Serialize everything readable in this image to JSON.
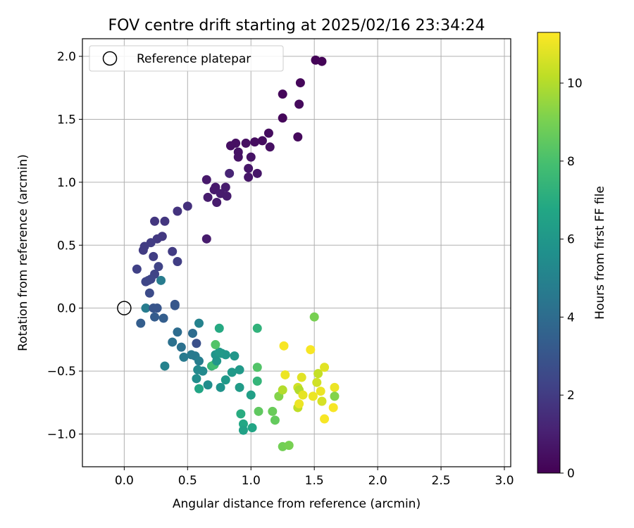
{
  "chart_data": {
    "type": "scatter",
    "title": "FOV centre drift starting at 2025/02/16 23:34:24",
    "xlabel": "Angular distance from reference (arcmin)",
    "ylabel": "Rotation from reference (arcmin)",
    "xlim": [
      -0.33,
      3.05
    ],
    "ylim": [
      -1.26,
      2.14
    ],
    "xticks": [
      0.0,
      0.5,
      1.0,
      1.5,
      2.0,
      2.5,
      3.0
    ],
    "xtick_labels": [
      "0.0",
      "0.5",
      "1.0",
      "1.5",
      "2.0",
      "2.5",
      "3.0"
    ],
    "yticks": [
      -1.0,
      -0.5,
      0.0,
      0.5,
      1.0,
      1.5,
      2.0
    ],
    "ytick_labels": [
      "−1.0",
      "−0.5",
      "0.0",
      "0.5",
      "1.0",
      "1.5",
      "2.0"
    ],
    "grid": true,
    "legend": {
      "placement": "top-left",
      "entries": [
        {
          "label": "Reference platepar",
          "marker": "open-circle",
          "x": 0.0,
          "y": 0.0
        }
      ]
    },
    "colorbar": {
      "label": "Hours from first FF file",
      "colormap": "viridis",
      "range": [
        0,
        11.3
      ],
      "ticks": [
        0,
        2,
        4,
        6,
        8,
        10
      ],
      "tick_labels": [
        "0",
        "2",
        "4",
        "6",
        "8",
        "10"
      ]
    },
    "points": [
      [
        1.51,
        1.97,
        0.1
      ],
      [
        1.56,
        1.96,
        0.1
      ],
      [
        1.39,
        1.79,
        0.2
      ],
      [
        1.25,
        1.7,
        0.2
      ],
      [
        1.38,
        1.62,
        0.3
      ],
      [
        1.25,
        1.51,
        0.2
      ],
      [
        1.37,
        1.36,
        0.3
      ],
      [
        1.14,
        1.39,
        0.4
      ],
      [
        1.09,
        1.33,
        0.4
      ],
      [
        1.03,
        1.32,
        0.4
      ],
      [
        0.96,
        1.31,
        0.5
      ],
      [
        0.88,
        1.31,
        0.5
      ],
      [
        0.84,
        1.29,
        0.5
      ],
      [
        1.15,
        1.28,
        0.5
      ],
      [
        0.9,
        1.24,
        0.6
      ],
      [
        0.9,
        1.2,
        0.6
      ],
      [
        1.0,
        1.2,
        0.6
      ],
      [
        0.98,
        1.11,
        0.7
      ],
      [
        1.05,
        1.07,
        0.7
      ],
      [
        0.98,
        1.04,
        0.7
      ],
      [
        0.83,
        1.07,
        1.2
      ],
      [
        0.65,
        1.02,
        0.8
      ],
      [
        0.72,
        0.96,
        0.8
      ],
      [
        0.71,
        0.94,
        0.8
      ],
      [
        0.8,
        0.96,
        0.9
      ],
      [
        0.76,
        0.91,
        0.9
      ],
      [
        0.66,
        0.88,
        0.9
      ],
      [
        0.81,
        0.89,
        0.9
      ],
      [
        0.73,
        0.84,
        0.9
      ],
      [
        0.5,
        0.81,
        1.6
      ],
      [
        0.42,
        0.77,
        1.7
      ],
      [
        0.24,
        0.69,
        1.8
      ],
      [
        0.32,
        0.69,
        1.8
      ],
      [
        0.65,
        0.55,
        0.9
      ],
      [
        0.3,
        0.57,
        1.9
      ],
      [
        0.26,
        0.55,
        1.9
      ],
      [
        0.21,
        0.52,
        2.0
      ],
      [
        0.16,
        0.49,
        2.0
      ],
      [
        0.15,
        0.46,
        2.0
      ],
      [
        0.38,
        0.45,
        2.0
      ],
      [
        0.23,
        0.41,
        2.1
      ],
      [
        0.42,
        0.37,
        2.1
      ],
      [
        0.1,
        0.31,
        2.2
      ],
      [
        0.27,
        0.33,
        2.3
      ],
      [
        0.24,
        0.27,
        2.3
      ],
      [
        0.19,
        0.22,
        2.4
      ],
      [
        0.17,
        0.21,
        2.4
      ],
      [
        0.21,
        0.23,
        2.4
      ],
      [
        0.29,
        0.22,
        4.7
      ],
      [
        0.2,
        0.12,
        2.6
      ],
      [
        0.4,
        0.03,
        3.0
      ],
      [
        0.4,
        0.02,
        3.1
      ],
      [
        0.17,
        0.0,
        4.7
      ],
      [
        0.23,
        0.0,
        3.0
      ],
      [
        0.26,
        0.0,
        3.0
      ],
      [
        0.24,
        -0.07,
        3.3
      ],
      [
        0.31,
        -0.08,
        3.4
      ],
      [
        0.13,
        -0.12,
        3.4
      ],
      [
        0.59,
        -0.12,
        5.0
      ],
      [
        0.42,
        -0.19,
        4.0
      ],
      [
        0.54,
        -0.2,
        4.0
      ],
      [
        0.38,
        -0.27,
        4.2
      ],
      [
        0.57,
        -0.28,
        2.8
      ],
      [
        0.45,
        -0.31,
        4.2
      ],
      [
        0.47,
        -0.39,
        4.6
      ],
      [
        0.53,
        -0.37,
        4.6
      ],
      [
        0.56,
        -0.38,
        4.6
      ],
      [
        0.59,
        -0.42,
        4.8
      ],
      [
        0.32,
        -0.46,
        5.0
      ],
      [
        0.58,
        -0.49,
        5.3
      ],
      [
        0.62,
        -0.5,
        5.3
      ],
      [
        0.57,
        -0.56,
        5.5
      ],
      [
        0.66,
        -0.61,
        5.5
      ],
      [
        0.59,
        -0.64,
        6.7
      ],
      [
        0.69,
        -0.46,
        7.5
      ],
      [
        0.71,
        -0.45,
        7.8
      ],
      [
        0.73,
        -0.42,
        6.0
      ],
      [
        0.72,
        -0.37,
        5.9
      ],
      [
        0.77,
        -0.36,
        6.0
      ],
      [
        0.8,
        -0.37,
        6.0
      ],
      [
        0.75,
        -0.35,
        6.1
      ],
      [
        0.87,
        -0.38,
        6.0
      ],
      [
        0.85,
        -0.51,
        6.1
      ],
      [
        0.91,
        -0.49,
        6.1
      ],
      [
        0.8,
        -0.57,
        6.1
      ],
      [
        0.76,
        -0.63,
        5.8
      ],
      [
        0.91,
        -0.63,
        6.2
      ],
      [
        0.75,
        -0.16,
        6.9
      ],
      [
        0.72,
        -0.29,
        8.2
      ],
      [
        1.0,
        -0.69,
        6.4
      ],
      [
        0.92,
        -0.84,
        7.0
      ],
      [
        0.94,
        -0.92,
        6.8
      ],
      [
        0.94,
        -0.97,
        6.5
      ],
      [
        1.01,
        -0.95,
        6.7
      ],
      [
        1.05,
        -0.16,
        7.3
      ],
      [
        1.05,
        -0.47,
        8.2
      ],
      [
        1.05,
        -0.58,
        7.4
      ],
      [
        1.06,
        -0.82,
        8.5
      ],
      [
        1.17,
        -0.82,
        8.7
      ],
      [
        1.19,
        -0.89,
        8.6
      ],
      [
        1.22,
        -0.7,
        9.2
      ],
      [
        1.25,
        -0.65,
        10.0
      ],
      [
        1.25,
        -1.1,
        8.9
      ],
      [
        1.3,
        -1.09,
        9.0
      ],
      [
        1.27,
        -0.53,
        11.0
      ],
      [
        1.26,
        -0.3,
        11.2
      ],
      [
        1.37,
        -0.63,
        10.5
      ],
      [
        1.38,
        -0.65,
        10.0
      ],
      [
        1.37,
        -0.79,
        10.2
      ],
      [
        1.4,
        -0.55,
        10.8
      ],
      [
        1.41,
        -0.69,
        10.9
      ],
      [
        1.38,
        -0.76,
        11.0
      ],
      [
        1.47,
        -0.33,
        11.2
      ],
      [
        1.5,
        -0.07,
        9.0
      ],
      [
        1.49,
        -0.7,
        11.0
      ],
      [
        1.52,
        -0.59,
        10.5
      ],
      [
        1.53,
        -0.52,
        10.3
      ],
      [
        1.55,
        -0.66,
        11.0
      ],
      [
        1.56,
        -0.74,
        10.6
      ],
      [
        1.58,
        -0.47,
        10.8
      ],
      [
        1.58,
        -0.88,
        11.2
      ],
      [
        1.66,
        -0.63,
        11.0
      ],
      [
        1.65,
        -0.79,
        11.2
      ],
      [
        1.66,
        -0.7,
        9.2
      ]
    ]
  }
}
